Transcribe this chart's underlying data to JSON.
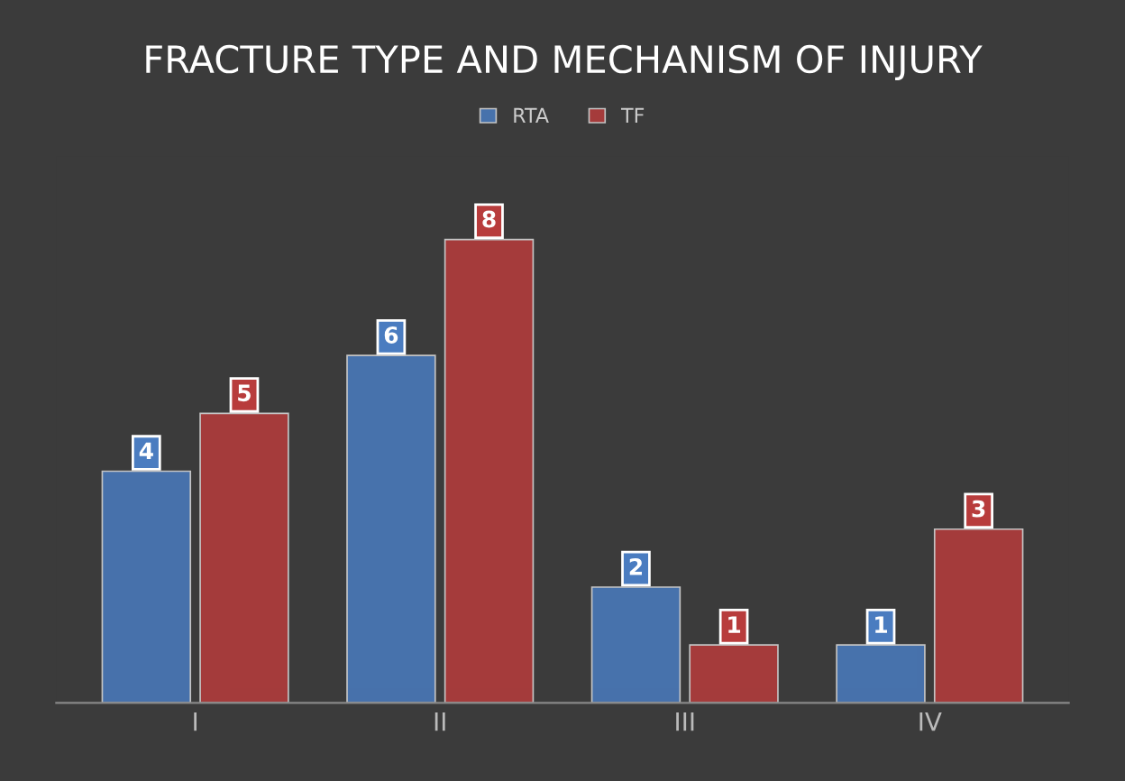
{
  "chart_data": {
    "type": "bar",
    "title": "FRACTURE TYPE AND MECHANISM OF INJURY",
    "categories": [
      "I",
      "II",
      "III",
      "IV"
    ],
    "series": [
      {
        "name": "RTA",
        "color": "#4a7cc0",
        "values": [
          4,
          6,
          2,
          1
        ]
      },
      {
        "name": "TF",
        "color": "#b83c3c",
        "values": [
          5,
          8,
          1,
          3
        ]
      }
    ],
    "data_labels": true,
    "legend": "top",
    "grid": false,
    "tick_labels": "x"
  }
}
